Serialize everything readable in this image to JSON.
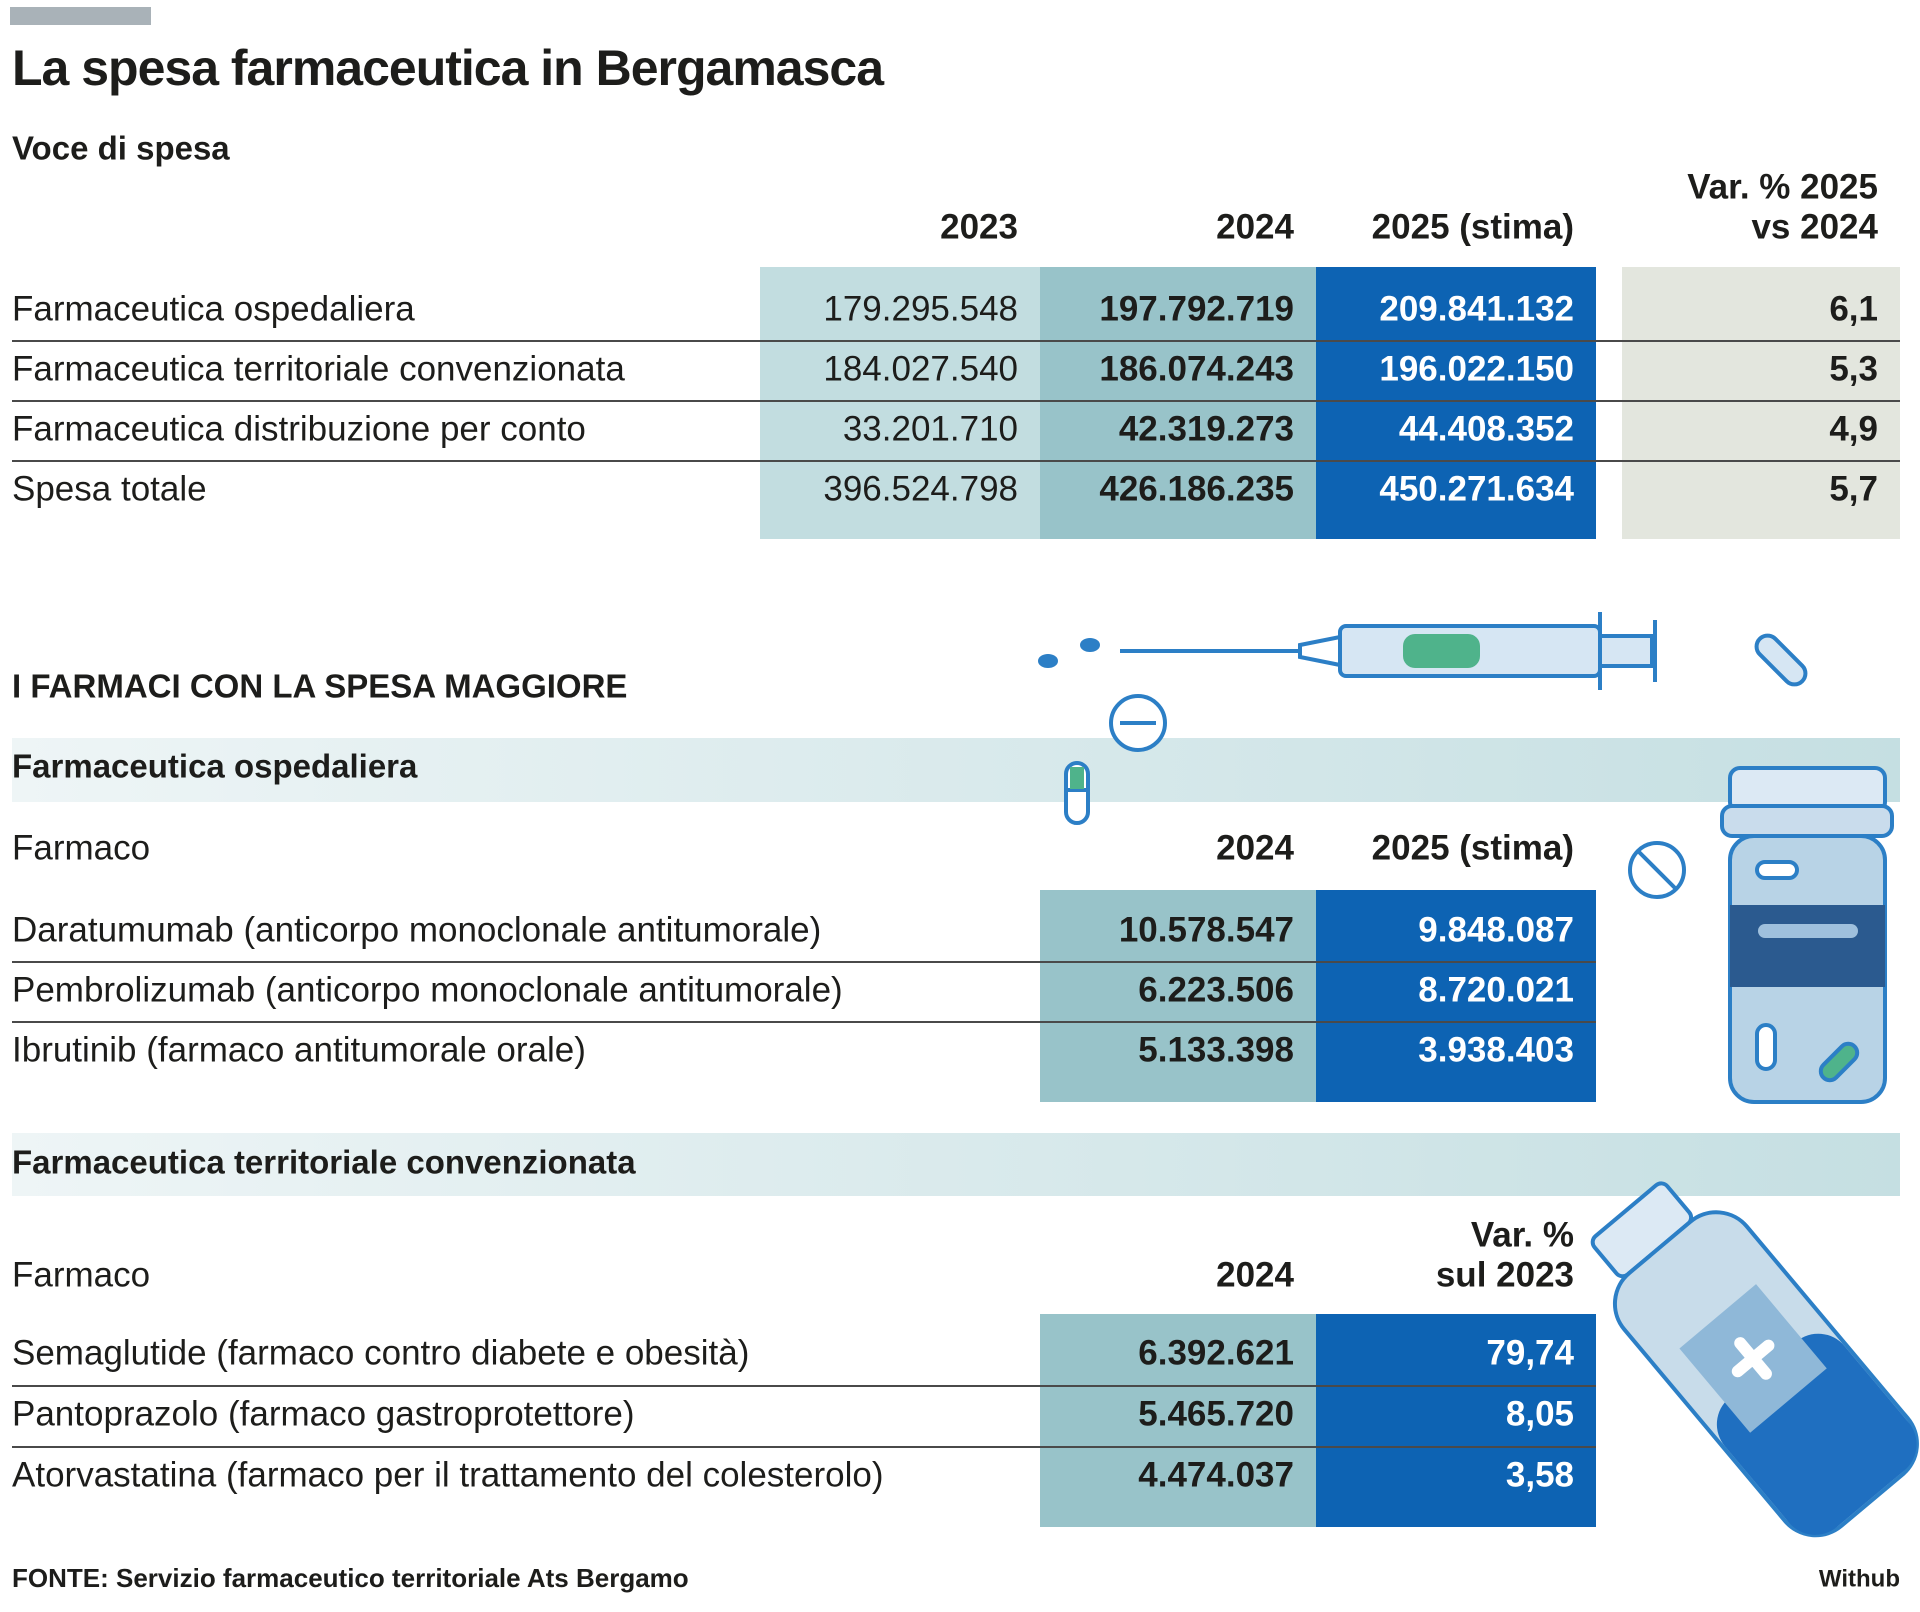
{
  "header": {
    "title": "La spesa farmaceutica in Bergamasca",
    "subtitle": "Voce di spesa"
  },
  "table": {
    "columns": [
      "2023",
      "2024",
      "2025 (stima)",
      [
        "Var. % 2025",
        "vs 2024"
      ]
    ],
    "rows": [
      [
        "Farmaceutica ospedaliera",
        "179.295.548",
        "197.792.719",
        "209.841.132",
        "6,1"
      ],
      [
        "Farmaceutica territoriale convenzionata",
        "184.027.540",
        "186.074.243",
        "196.022.150",
        "5,3"
      ],
      [
        "Farmaceutica distribuzione per conto",
        "33.201.710",
        "42.319.273",
        "44.408.352",
        "4,9"
      ],
      [
        "Spesa totale",
        "396.524.798",
        "426.186.235",
        "450.271.634",
        "5,7"
      ]
    ]
  },
  "section_title": "I FARMACI CON LA SPESA MAGGIORE",
  "hospital": {
    "title": "Farmaceutica ospedaliera",
    "columns": [
      "Farmaco",
      "2024",
      "2025 (stima)"
    ],
    "rows": [
      [
        "Daratumumab (anticorpo monoclonale antitumorale)",
        "10.578.547",
        "9.848.087"
      ],
      [
        "Pembrolizumab (anticorpo monoclonale antitumorale)",
        "6.223.506",
        "8.720.021"
      ],
      [
        "Ibrutinib (farmaco antitumorale orale)",
        "5.133.398",
        "3.938.403"
      ]
    ]
  },
  "territorial": {
    "title": "Farmaceutica territoriale convenzionata",
    "columns": [
      "Farmaco",
      "2024",
      [
        "Var. %",
        "sul 2023"
      ]
    ],
    "rows": [
      [
        "Semaglutide (farmaco contro diabete e obesità)",
        "6.392.621",
        "79,74"
      ],
      [
        "Pantoprazolo (farmaco gastroprotettore)",
        "5.465.720",
        "8,05"
      ],
      [
        "Atorvastatina (farmaco per il trattamento del colesterolo)",
        "4.474.037",
        "3,58"
      ]
    ]
  },
  "footer": {
    "source": "FONTE: Servizio farmaceutico territoriale Ats Bergamo",
    "credit": "Withub"
  }
}
